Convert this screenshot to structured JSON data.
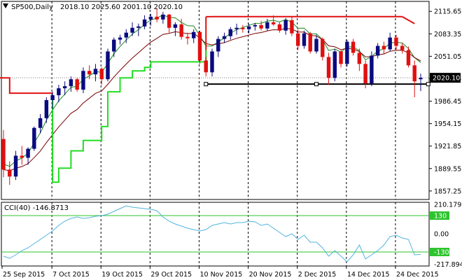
{
  "chart_data": {
    "type": "candlestick",
    "title": {
      "symbol": "SP500,Daily",
      "ohlc": "2018.10 2025.60 2001.10 2020.10"
    },
    "price_axis": {
      "range": [
        1845,
        2130
      ],
      "ticks": [
        "2115.65",
        "2083.35",
        "2051.05",
        "2018.75",
        "1986.45",
        "1954.15",
        "1921.85",
        "1889.55",
        "1857.25"
      ],
      "tick_values": [
        2115.65,
        2083.35,
        2051.05,
        2018.75,
        1986.45,
        1954.15,
        1921.85,
        1889.55,
        1857.25
      ],
      "current_price": "2020.10",
      "current_price_value": 2020.1
    },
    "date_axis": {
      "labels": [
        "25 Sep 2015",
        "7 Oct 2015",
        "19 Oct 2015",
        "29 Oct 2015",
        "10 Nov 2015",
        "20 Nov 2015",
        "2 Dec 2015",
        "14 Dec 2015",
        "24 Dec 2015"
      ],
      "label_index": [
        0,
        8,
        16,
        24,
        32,
        40,
        48,
        56,
        64
      ]
    },
    "bull_color": "#0a0a80",
    "bear_color": "#e01010",
    "candles": [
      [
        1932,
        1945,
        1877,
        1888
      ],
      [
        1888,
        1900,
        1866,
        1878
      ],
      [
        1878,
        1915,
        1873,
        1908
      ],
      [
        1908,
        1922,
        1895,
        1905
      ],
      [
        1905,
        1920,
        1895,
        1918
      ],
      [
        1918,
        1950,
        1915,
        1948
      ],
      [
        1948,
        1968,
        1940,
        1962
      ],
      [
        1962,
        1992,
        1955,
        1988
      ],
      [
        1988,
        2000,
        1975,
        1995
      ],
      [
        1995,
        2010,
        1985,
        2005
      ],
      [
        2005,
        2015,
        1995,
        2008
      ],
      [
        2008,
        2022,
        2000,
        2018
      ],
      [
        2018,
        2020,
        2000,
        2003
      ],
      [
        2003,
        2035,
        1998,
        2030
      ],
      [
        2030,
        2038,
        2018,
        2025
      ],
      [
        2025,
        2040,
        2015,
        2033
      ],
      [
        2033,
        2035,
        2010,
        2018
      ],
      [
        2018,
        2062,
        2015,
        2058
      ],
      [
        2058,
        2078,
        2050,
        2075
      ],
      [
        2075,
        2082,
        2068,
        2078
      ],
      [
        2078,
        2090,
        2070,
        2085
      ],
      [
        2085,
        2100,
        2080,
        2092
      ],
      [
        2092,
        2098,
        2080,
        2094
      ],
      [
        2094,
        2110,
        2090,
        2104
      ],
      [
        2104,
        2112,
        2095,
        2108
      ],
      [
        2108,
        2120,
        2100,
        2104
      ],
      [
        2104,
        2115,
        2098,
        2111
      ],
      [
        2111,
        2112,
        2085,
        2092
      ],
      [
        2092,
        2100,
        2080,
        2097
      ],
      [
        2097,
        2105,
        2075,
        2079
      ],
      [
        2079,
        2085,
        2068,
        2077
      ],
      [
        2077,
        2090,
        2070,
        2086
      ],
      [
        2086,
        2088,
        2040,
        2045
      ],
      [
        2045,
        2050,
        2022,
        2028
      ],
      [
        2028,
        2062,
        2022,
        2058
      ],
      [
        2058,
        2080,
        2050,
        2076
      ],
      [
        2076,
        2085,
        2070,
        2080
      ],
      [
        2080,
        2093,
        2075,
        2090
      ],
      [
        2090,
        2098,
        2082,
        2092
      ],
      [
        2092,
        2096,
        2085,
        2090
      ],
      [
        2090,
        2098,
        2084,
        2094
      ],
      [
        2094,
        2099,
        2088,
        2096
      ],
      [
        2096,
        2102,
        2088,
        2091
      ],
      [
        2091,
        2105,
        2088,
        2100
      ],
      [
        2100,
        2110,
        2095,
        2097
      ],
      [
        2097,
        2100,
        2085,
        2088
      ],
      [
        2088,
        2106,
        2082,
        2103
      ],
      [
        2103,
        2108,
        2080,
        2084
      ],
      [
        2084,
        2090,
        2060,
        2066
      ],
      [
        2066,
        2088,
        2062,
        2084
      ],
      [
        2084,
        2086,
        2055,
        2058
      ],
      [
        2058,
        2082,
        2055,
        2076
      ],
      [
        2076,
        2078,
        2045,
        2050
      ],
      [
        2050,
        2056,
        2010,
        2020
      ],
      [
        2020,
        2062,
        2015,
        2058
      ],
      [
        2058,
        2060,
        2035,
        2040
      ],
      [
        2040,
        2075,
        2036,
        2072
      ],
      [
        2072,
        2076,
        2052,
        2056
      ],
      [
        2056,
        2062,
        2030,
        2040
      ],
      [
        2040,
        2045,
        2005,
        2012
      ],
      [
        2012,
        2058,
        2008,
        2052
      ],
      [
        2052,
        2070,
        2048,
        2066
      ],
      [
        2066,
        2072,
        2055,
        2061
      ],
      [
        2061,
        2085,
        2058,
        2078
      ],
      [
        2078,
        2082,
        2060,
        2066
      ],
      [
        2066,
        2070,
        2055,
        2060
      ],
      [
        2060,
        2065,
        2035,
        2038
      ],
      [
        2038,
        2045,
        1992,
        2015
      ],
      [
        2018,
        2026,
        2001,
        2020
      ]
    ],
    "overlays": {
      "channel_upper": {
        "color": "#e01010"
      },
      "channel_lower": {
        "color": "#000000"
      },
      "ma_fast": {
        "color": "#1a8a1a"
      },
      "ma_slow": {
        "color": "#7a0000"
      },
      "sar_line": {
        "color": "#22dd22"
      }
    },
    "cci": {
      "label": "CCI(40) -146.8713",
      "axis_labels": [
        "210.1799",
        "130",
        "0.00",
        "-130",
        "-217.8943"
      ],
      "axis_values": [
        210.1799,
        130,
        0,
        -130,
        -217.8943
      ],
      "levels": [
        130,
        -130
      ],
      "range": [
        -230,
        225
      ],
      "color": "#50b4dc",
      "level_color": "#2ec42e",
      "values": [
        -160,
        -175,
        -150,
        -120,
        -100,
        -70,
        -40,
        -10,
        20,
        60,
        90,
        110,
        120,
        110,
        115,
        125,
        130,
        140,
        160,
        180,
        200,
        190,
        185,
        180,
        175,
        165,
        120,
        90,
        70,
        55,
        40,
        30,
        20,
        30,
        60,
        70,
        80,
        70,
        80,
        80,
        90,
        85,
        60,
        70,
        40,
        10,
        -20,
        0,
        -40,
        -10,
        -60,
        -60,
        -100,
        -160,
        -120,
        -160,
        -200,
        -150,
        -80,
        -180,
        -150,
        -120,
        -80,
        -20,
        -10,
        -30,
        -40,
        -150,
        -146.8713
      ]
    }
  }
}
